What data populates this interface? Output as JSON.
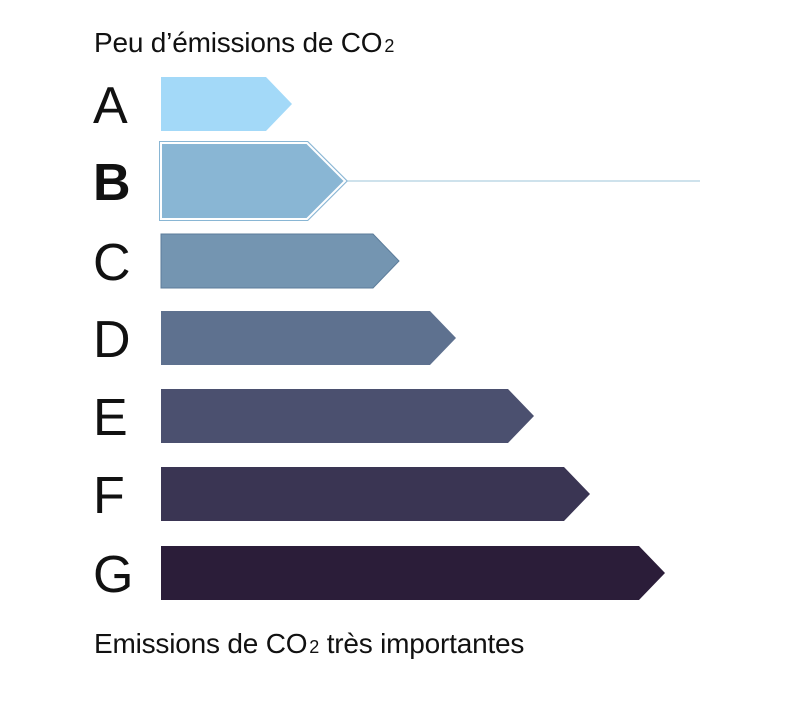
{
  "header": {
    "text": "Peu d’émissions de CO",
    "subscript": "2"
  },
  "footer": {
    "text_before": "Emissions de CO",
    "subscript": "2",
    "text_after": " très importantes"
  },
  "classes": [
    {
      "letter": "A",
      "color": "#a3d9f8",
      "highlighted": false
    },
    {
      "letter": "B",
      "color": "#89b6d4",
      "highlighted": true
    },
    {
      "letter": "C",
      "color": "#7495b1",
      "highlighted": false
    },
    {
      "letter": "D",
      "color": "#5e718f",
      "highlighted": false
    },
    {
      "letter": "E",
      "color": "#4b506f",
      "highlighted": false
    },
    {
      "letter": "F",
      "color": "#3a3553",
      "highlighted": false
    },
    {
      "letter": "G",
      "color": "#2b1d39",
      "highlighted": false
    }
  ],
  "active_class": "B",
  "marker_line_color": "#9ec4da"
}
